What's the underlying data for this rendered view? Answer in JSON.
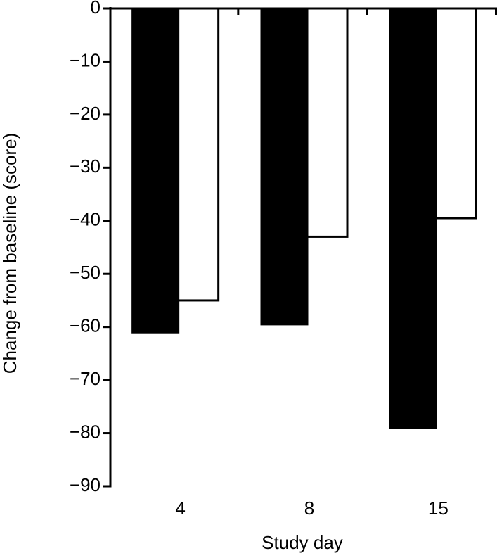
{
  "chart_data": {
    "type": "bar",
    "x_label": "Study day",
    "y_label": "Change from baseline (score)",
    "categories": [
      "4",
      "8",
      "15"
    ],
    "series": [
      {
        "color": "#000000",
        "values": [
          -61,
          -59.5,
          -79
        ]
      },
      {
        "color": "#ffffff",
        "values": [
          -55,
          -43,
          -39.5
        ]
      }
    ],
    "ylim": [
      -90,
      0
    ],
    "yticks": [
      0,
      {
        "value": -10,
        "label": "−10"
      },
      {
        "value": -20,
        "label": "−20"
      },
      {
        "value": -30,
        "label": "−30"
      },
      {
        "value": -40,
        "label": "−40"
      },
      {
        "value": -50,
        "label": "−50"
      },
      {
        "value": -60,
        "label": "−60"
      },
      {
        "value": -70,
        "label": "−70"
      },
      {
        "value": -80,
        "label": "−80"
      },
      {
        "value": -90,
        "label": "−90"
      }
    ],
    "grid": false
  }
}
